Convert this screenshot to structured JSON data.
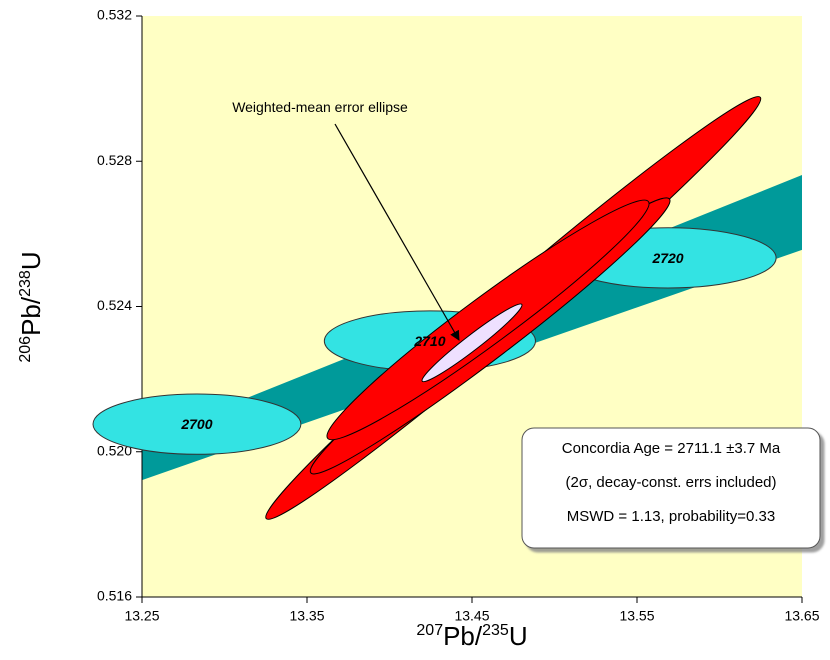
{
  "chart_data": {
    "type": "concordia",
    "xlabel": [
      {
        "text": "207",
        "sup": true
      },
      {
        "text": "Pb/"
      },
      {
        "text": "235",
        "sup": true
      },
      {
        "text": "U"
      }
    ],
    "ylabel": [
      {
        "text": "206",
        "sup": true
      },
      {
        "text": "Pb/"
      },
      {
        "text": "238",
        "sup": true
      },
      {
        "text": "U"
      }
    ],
    "xlim": [
      13.25,
      13.65
    ],
    "ylim": [
      0.516,
      0.532
    ],
    "xticks": [
      13.25,
      13.35,
      13.45,
      13.55,
      13.65
    ],
    "yticks": [
      0.516,
      {
        "value": 0.52,
        "label": "0.520"
      },
      0.524,
      0.528,
      0.532
    ],
    "background": "#ffffc4",
    "concordia_band": {
      "color": "#009a9a",
      "x": [
        13.25,
        13.65
      ],
      "lower": [
        0.51922,
        0.52556
      ],
      "upper": [
        0.52032,
        0.52762
      ]
    },
    "age_markers": {
      "color": "#33e3e3",
      "items": [
        {
          "label": "2700",
          "x": 13.2833,
          "y": 0.52076,
          "sx": 0.063,
          "sy": 0.00083,
          "rho": 0
        },
        {
          "label": "2710",
          "x": 13.4245,
          "y": 0.52305,
          "sx": 0.064,
          "sy": 0.00083,
          "rho": 0
        },
        {
          "label": "2720",
          "x": 13.5688,
          "y": 0.52534,
          "sx": 0.0655,
          "sy": 0.00083,
          "rho": 0
        }
      ]
    },
    "data_ellipses": {
      "color": "#ff0000",
      "items": [
        {
          "x": 13.475,
          "y": 0.52396,
          "sx": 0.15,
          "sy": 0.00582,
          "rho": 0.99
        },
        {
          "x": 13.461,
          "y": 0.52319,
          "sx": 0.109,
          "sy": 0.0038,
          "rho": 0.98
        },
        {
          "x": 13.4597,
          "y": 0.52363,
          "sx": 0.0976,
          "sy": 0.0033,
          "rho": 0.97
        }
      ]
    },
    "mean_ellipse": {
      "color": "#eee0ff",
      "x": 13.45,
      "y": 0.523,
      "sx": 0.0303,
      "sy": 0.00107,
      "rho": 0.97
    },
    "annotation": "Weighted-mean error ellipse",
    "result_box": [
      "Concordia Age = 2711.1 ±3.7 Ma",
      "(2σ, decay-const. errs included)",
      "MSWD = 1.13, probability=0.33"
    ]
  }
}
